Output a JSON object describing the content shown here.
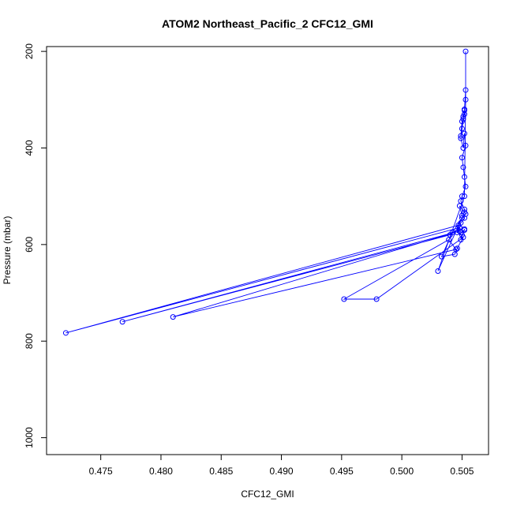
{
  "chart_data": {
    "type": "line",
    "title": "ATOM2 Northeast_Pacific_2 CFC12_GMI",
    "xlabel": "CFC12_GMI",
    "ylabel": "Pressure (mbar)",
    "xlim": [
      0.4705,
      0.5072
    ],
    "ylim": [
      1035,
      190
    ],
    "y_reversed": true,
    "x_ticks": [
      0.475,
      0.48,
      0.485,
      0.49,
      0.495,
      0.5,
      0.505
    ],
    "x_tick_labels": [
      "0.475",
      "0.480",
      "0.485",
      "0.490",
      "0.495",
      "0.500",
      "0.505"
    ],
    "y_ticks": [
      200,
      400,
      600,
      800,
      1000
    ],
    "y_tick_labels": [
      "200",
      "400",
      "600",
      "800",
      "1000"
    ],
    "grid": false,
    "legend": "none",
    "series": [
      {
        "color": "#0000ff",
        "marker": "open-circle",
        "x": [
          0.5053,
          0.5052,
          0.5051,
          0.505,
          0.5049,
          0.505,
          0.5051,
          0.5052,
          0.5052,
          0.5049,
          0.5051,
          0.5052,
          0.5053,
          0.505,
          0.5051,
          0.5052,
          0.5053,
          0.505,
          0.5049,
          0.5052,
          0.5052,
          0.5053,
          0.5048,
          0.505,
          0.5052,
          0.5049,
          0.5048,
          0.5046,
          0.505,
          0.5049,
          0.5052,
          0.5052,
          0.5049,
          0.5047,
          0.4721,
          0.5048,
          0.504,
          0.4768,
          0.5048,
          0.481,
          0.5045,
          0.5039,
          0.4952,
          0.4979,
          0.5051,
          0.5046,
          0.5044,
          0.5033,
          0.5042,
          0.505,
          0.503,
          0.5052,
          0.5053,
          0.5053
        ],
        "y": [
          280,
          320,
          335,
          360,
          375,
          345,
          340,
          330,
          322,
          380,
          400,
          370,
          395,
          420,
          440,
          460,
          480,
          500,
          510,
          527,
          533,
          537,
          520,
          540,
          545,
          555,
          565,
          575,
          580,
          590,
          568,
          570,
          575,
          560,
          783,
          565,
          580,
          760,
          572,
          750,
          610,
          590,
          713,
          713,
          585,
          608,
          620,
          625,
          575,
          545,
          655,
          500,
          300,
          200
        ]
      }
    ]
  }
}
